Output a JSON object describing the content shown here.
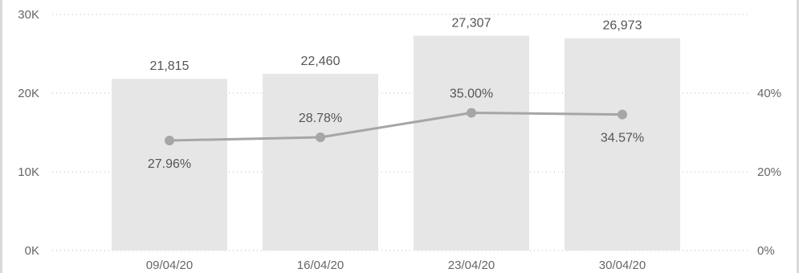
{
  "chart_data": {
    "type": "bar",
    "categories": [
      "09/04/20",
      "16/04/20",
      "23/04/20",
      "30/04/20"
    ],
    "series": [
      {
        "type": "bar",
        "axis": "left",
        "values": [
          21815,
          22460,
          27307,
          26973
        ],
        "labels": [
          "21,815",
          "22,460",
          "27,307",
          "26,973"
        ],
        "color": "#e6e6e6"
      },
      {
        "type": "line",
        "axis": "right",
        "values": [
          27.96,
          28.78,
          35.0,
          34.57
        ],
        "labels": [
          "27.96%",
          "28.78%",
          "35.00%",
          "34.57%"
        ],
        "color": "#a6a6a6"
      }
    ],
    "y_left": {
      "ticks": [
        0,
        10000,
        20000,
        30000
      ],
      "tick_labels": [
        "0K",
        "10K",
        "20K",
        "30K"
      ],
      "range": [
        0,
        30000
      ]
    },
    "y_right": {
      "ticks": [
        0,
        20,
        40
      ],
      "tick_labels": [
        "0%",
        "20%",
        "40%"
      ],
      "range": [
        0,
        60
      ]
    },
    "grid": true,
    "legend": "none"
  }
}
